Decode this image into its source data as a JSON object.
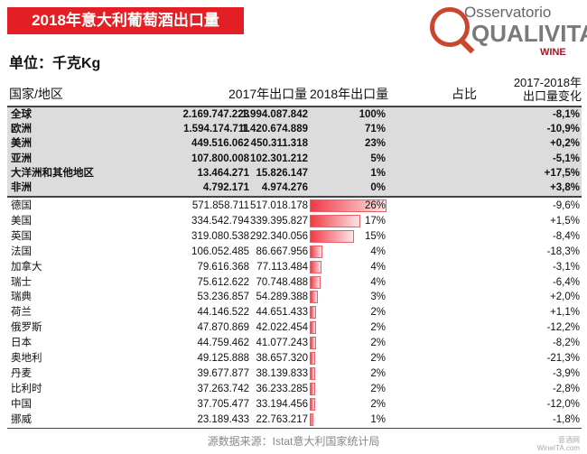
{
  "title": "2018年意大利葡萄酒出口量",
  "logo": {
    "line1": "Osservatorio",
    "line2": "QUALIVITA",
    "line3": "WINE"
  },
  "unit": "单位：千克Kg",
  "headers": {
    "country": "国家/地区",
    "y2017": "2017年出口量",
    "y2018": "2018年出口量",
    "share": "占比",
    "change_l1": "2017-2018年",
    "change_l2": "出口量变化"
  },
  "regions": [
    {
      "name": "全球",
      "y2017": "2.169.747.223",
      "y2018": "1.994.087.842",
      "share": "100%",
      "change": "-8,1%"
    },
    {
      "name": "欧洲",
      "y2017": "1.594.174.711",
      "y2018": "1.420.674.889",
      "share": "71%",
      "change": "-10,9%"
    },
    {
      "name": "美洲",
      "y2017": "449.516.062",
      "y2018": "450.311.318",
      "share": "23%",
      "change": "+0,2%"
    },
    {
      "name": "亚洲",
      "y2017": "107.800.008",
      "y2018": "102.301.212",
      "share": "5%",
      "change": "-5,1%"
    },
    {
      "name": "大洋洲和其他地区",
      "y2017": "13.464.271",
      "y2018": "15.826.147",
      "share": "1%",
      "change": "+17,5%"
    },
    {
      "name": "非洲",
      "y2017": "4.792.171",
      "y2018": "4.974.276",
      "share": "0%",
      "change": "+3,8%"
    }
  ],
  "countries": [
    {
      "name": "德国",
      "y2017": "571.858.711",
      "y2018": "517.018.178",
      "share": "26%",
      "change": "-9,6%",
      "bar": 25.9
    },
    {
      "name": "美国",
      "y2017": "334.542.794",
      "y2018": "339.395.827",
      "share": "17%",
      "change": "+1,5%",
      "bar": 17.0
    },
    {
      "name": "英国",
      "y2017": "319.080.538",
      "y2018": "292.340.056",
      "share": "15%",
      "change": "-8,4%",
      "bar": 14.7
    },
    {
      "name": "法国",
      "y2017": "106.052.485",
      "y2018": "86.667.956",
      "share": "4%",
      "change": "-18,3%",
      "bar": 4.3
    },
    {
      "name": "加拿大",
      "y2017": "79.616.368",
      "y2018": "77.113.484",
      "share": "4%",
      "change": "-3,1%",
      "bar": 3.9
    },
    {
      "name": "瑞士",
      "y2017": "75.612.622",
      "y2018": "70.748.488",
      "share": "4%",
      "change": "-6,4%",
      "bar": 3.5
    },
    {
      "name": "瑞典",
      "y2017": "53.236.857",
      "y2018": "54.289.388",
      "share": "3%",
      "change": "+2,0%",
      "bar": 2.7
    },
    {
      "name": "荷兰",
      "y2017": "44.146.522",
      "y2018": "44.651.433",
      "share": "2%",
      "change": "+1,1%",
      "bar": 2.2
    },
    {
      "name": "俄罗斯",
      "y2017": "47.870.869",
      "y2018": "42.022.454",
      "share": "2%",
      "change": "-12,2%",
      "bar": 2.1
    },
    {
      "name": "日本",
      "y2017": "44.759.462",
      "y2018": "41.077.243",
      "share": "2%",
      "change": "-8,2%",
      "bar": 2.1
    },
    {
      "name": "奥地利",
      "y2017": "49.125.888",
      "y2018": "38.657.320",
      "share": "2%",
      "change": "-21,3%",
      "bar": 1.9
    },
    {
      "name": "丹麦",
      "y2017": "39.677.877",
      "y2018": "38.139.833",
      "share": "2%",
      "change": "-3,9%",
      "bar": 1.9
    },
    {
      "name": "比利时",
      "y2017": "37.263.742",
      "y2018": "36.233.285",
      "share": "2%",
      "change": "-2,8%",
      "bar": 1.8
    },
    {
      "name": "中国",
      "y2017": "37.705.477",
      "y2018": "33.194.456",
      "share": "2%",
      "change": "-12,0%",
      "bar": 1.7
    },
    {
      "name": "挪威",
      "y2017": "23.189.433",
      "y2018": "22.763.217",
      "share": "1%",
      "change": "-1,8%",
      "bar": 1.1
    }
  ],
  "source": "源数据来源：Istat意大利国家统计局",
  "watermark": {
    "l1": "意酒网",
    "l2": "WineITA.com"
  },
  "colors": {
    "banner": "#e31e24",
    "bar": "#f03a45",
    "region_bg": "#dcdcdc"
  }
}
